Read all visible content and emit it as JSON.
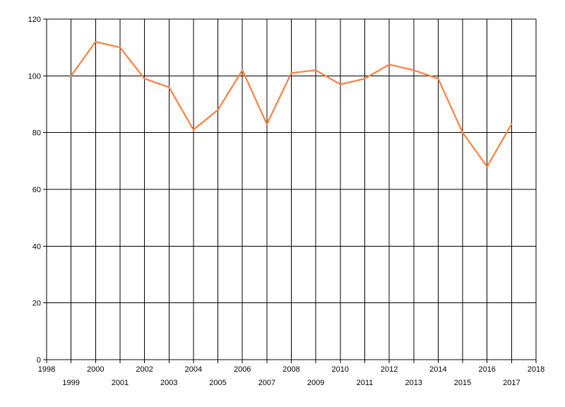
{
  "chart_data": {
    "type": "line",
    "title": "",
    "xlabel": "",
    "ylabel": "",
    "xlim": [
      1998,
      2018
    ],
    "ylim": [
      0,
      120
    ],
    "x_ticks": [
      1998,
      1999,
      2000,
      2001,
      2002,
      2003,
      2004,
      2005,
      2006,
      2007,
      2008,
      2009,
      2010,
      2011,
      2012,
      2013,
      2014,
      2015,
      2016,
      2017,
      2018
    ],
    "y_ticks": [
      0,
      20,
      40,
      60,
      80,
      100,
      120
    ],
    "grid": true,
    "legend": "none",
    "series": [
      {
        "color": "#ff7f3f",
        "x": [
          1999,
          2000,
          2001,
          2002,
          2003,
          2004,
          2005,
          2006,
          2007,
          2008,
          2009,
          2010,
          2011,
          2012,
          2013,
          2014,
          2015,
          2016,
          2017
        ],
        "values": [
          100,
          112,
          110,
          99,
          96,
          81,
          88,
          102,
          83,
          101,
          102,
          97,
          99,
          104,
          102,
          99,
          80,
          68,
          83
        ]
      }
    ]
  }
}
